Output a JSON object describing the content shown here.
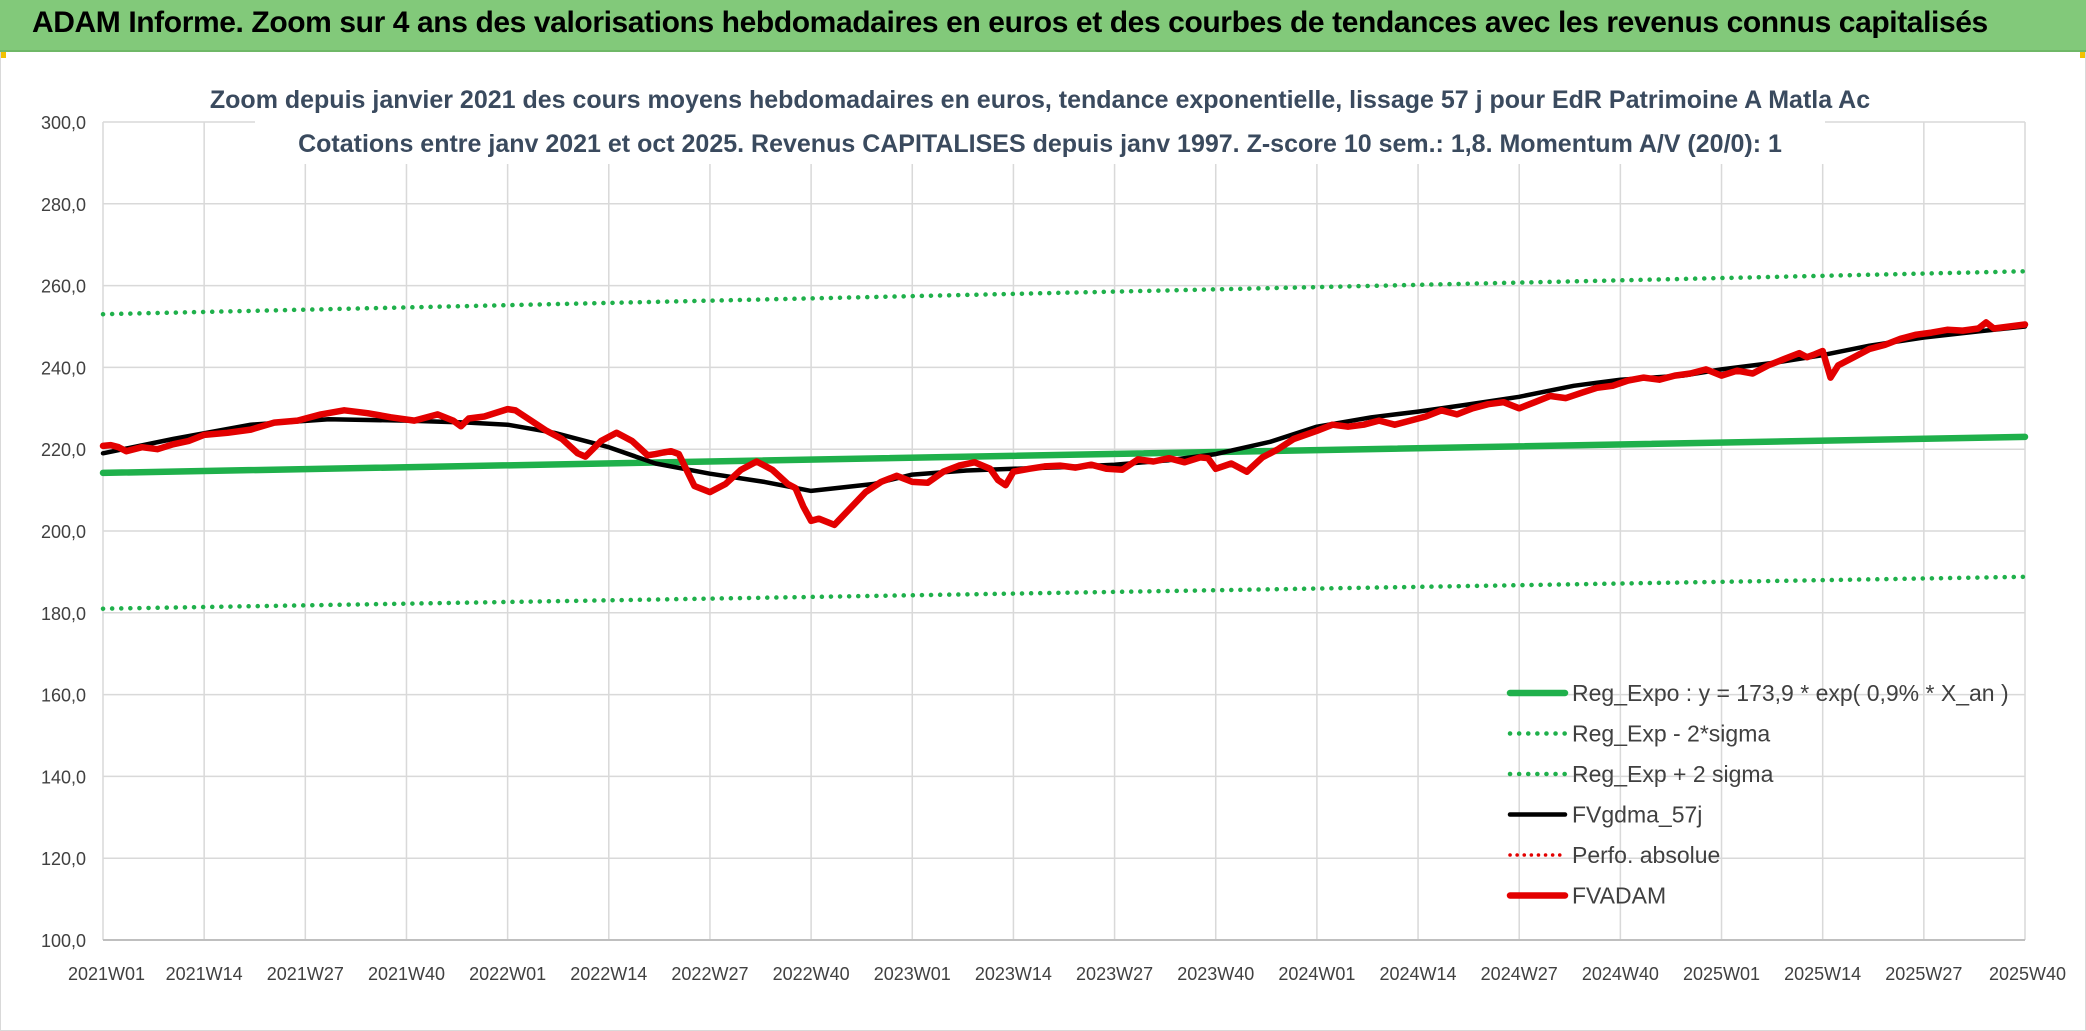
{
  "header": {
    "title": "ADAM Informe. Zoom sur 4 ans des valorisations hebdomadaires en euros et des courbes de tendances avec les revenus connus capitalisés"
  },
  "chart_data": {
    "type": "line",
    "title_line1": "Zoom depuis janvier 2021 des cours moyens hebdomadaires en euros, tendance exponentielle, lissage 57 j pour EdR Patrimoine A Matla Ac",
    "title_line2": "Cotations entre janv 2021 et oct 2025. Revenus CAPITALISES depuis janv 1997. Z-score 10 sem.: 1,8. Momentum A/V (20/0): 1",
    "ylim": [
      100,
      300
    ],
    "y_ticks": [
      "100,0",
      "120,0",
      "140,0",
      "160,0",
      "180,0",
      "200,0",
      "220,0",
      "240,0",
      "260,0",
      "280,0",
      "300,0"
    ],
    "y_tick_values": [
      100,
      120,
      140,
      160,
      180,
      200,
      220,
      240,
      260,
      280,
      300
    ],
    "x_ticks": [
      "2021W01",
      "2021W14",
      "2021W27",
      "2021W40",
      "2022W01",
      "2022W14",
      "2022W27",
      "2022W40",
      "2023W01",
      "2023W14",
      "2023W27",
      "2023W40",
      "2024W01",
      "2024W14",
      "2024W27",
      "2024W40",
      "2025W01",
      "2025W14",
      "2025W27",
      "2025W40"
    ],
    "grid": true,
    "legend_position": "bottom-right",
    "colors": {
      "green": "#1fb04b",
      "black": "#000000",
      "red": "#e30000",
      "grid": "#d9d9d9"
    },
    "series": [
      {
        "name": "Reg_Expo : y = 173,9 * exp( 0,9% *  X_an )",
        "style": "solid-green",
        "x": [
          "2021W01",
          "2025W40"
        ],
        "values": [
          214.2,
          223.0
        ]
      },
      {
        "name": "Reg_Exp - 2*sigma",
        "style": "dotted-green",
        "x": [
          "2021W01",
          "2025W40"
        ],
        "values": [
          181.0,
          188.8
        ]
      },
      {
        "name": "Reg_Exp + 2 sigma",
        "style": "dotted-green",
        "x": [
          "2021W01",
          "2025W40"
        ],
        "values": [
          253.0,
          263.5
        ]
      },
      {
        "name": "FVgdma_57j",
        "style": "solid-black",
        "x": [
          "2021W01",
          "2021W10",
          "2021W20",
          "2021W30",
          "2021W40",
          "2021W48",
          "2022W01",
          "2022W07",
          "2022W14",
          "2022W20",
          "2022W27",
          "2022W34",
          "2022W40",
          "2022W48",
          "2023W01",
          "2023W08",
          "2023W14",
          "2023W20",
          "2023W27",
          "2023W34",
          "2023W40",
          "2023W47",
          "2024W01",
          "2024W08",
          "2024W14",
          "2024W20",
          "2024W27",
          "2024W34",
          "2024W40",
          "2024W48",
          "2025W01",
          "2025W08",
          "2025W14",
          "2025W20",
          "2025W27",
          "2025W34",
          "2025W40"
        ],
        "values": [
          219.0,
          222.5,
          226.0,
          227.3,
          227.0,
          226.5,
          226.0,
          224.0,
          220.5,
          216.5,
          214.0,
          212.0,
          209.8,
          211.5,
          213.8,
          214.8,
          215.2,
          215.6,
          216.2,
          217.3,
          218.8,
          221.8,
          225.5,
          227.8,
          229.2,
          230.8,
          232.8,
          235.5,
          237.0,
          238.0,
          239.5,
          241.2,
          243.0,
          245.3,
          247.3,
          248.8,
          250.0
        ]
      },
      {
        "name": "Perfo. absolue",
        "style": "dotted-red",
        "x": [],
        "values": []
      },
      {
        "name": "FVADAM",
        "style": "solid-red",
        "x": [
          "2021W01",
          "2021W02",
          "2021W03",
          "2021W04",
          "2021W06",
          "2021W08",
          "2021W10",
          "2021W12",
          "2021W14",
          "2021W17",
          "2021W20",
          "2021W23",
          "2021W26",
          "2021W29",
          "2021W32",
          "2021W35",
          "2021W38",
          "2021W41",
          "2021W44",
          "2021W46",
          "2021W47",
          "2021W48",
          "2021W50",
          "2022W01",
          "2022W02",
          "2022W04",
          "2022W06",
          "2022W08",
          "2022W10",
          "2022W11",
          "2022W13",
          "2022W15",
          "2022W17",
          "2022W19",
          "2022W20",
          "2022W21",
          "2022W22",
          "2022W23",
          "2022W25",
          "2022W27",
          "2022W29",
          "2022W31",
          "2022W33",
          "2022W35",
          "2022W37",
          "2022W38",
          "2022W39",
          "2022W40",
          "2022W41",
          "2022W43",
          "2022W45",
          "2022W47",
          "2022W49",
          "2022W51",
          "2023W01",
          "2023W03",
          "2023W05",
          "2023W07",
          "2023W09",
          "2023W11",
          "2023W12",
          "2023W13",
          "2023W14",
          "2023W16",
          "2023W18",
          "2023W20",
          "2023W22",
          "2023W24",
          "2023W26",
          "2023W28",
          "2023W30",
          "2023W32",
          "2023W34",
          "2023W36",
          "2023W38",
          "2023W39",
          "2023W40",
          "2023W42",
          "2023W44",
          "2023W46",
          "2023W48",
          "2023W50",
          "2024W01",
          "2024W03",
          "2024W05",
          "2024W07",
          "2024W09",
          "2024W11",
          "2024W13",
          "2024W15",
          "2024W17",
          "2024W19",
          "2024W21",
          "2024W23",
          "2024W25",
          "2024W27",
          "2024W29",
          "2024W31",
          "2024W33",
          "2024W35",
          "2024W37",
          "2024W39",
          "2024W41",
          "2024W43",
          "2024W45",
          "2024W47",
          "2024W49",
          "2024W51",
          "2025W01",
          "2025W03",
          "2025W05",
          "2025W07",
          "2025W09",
          "2025W11",
          "2025W12",
          "2025W13",
          "2025W14",
          "2025W15",
          "2025W16",
          "2025W18",
          "2025W20",
          "2025W22",
          "2025W24",
          "2025W26",
          "2025W28",
          "2025W30",
          "2025W32",
          "2025W34",
          "2025W35",
          "2025W36",
          "2025W38",
          "2025W40"
        ],
        "values": [
          220.8,
          221.0,
          220.5,
          219.5,
          220.5,
          220.0,
          221.2,
          222.0,
          223.5,
          224.0,
          224.8,
          226.5,
          227.0,
          228.5,
          229.5,
          228.8,
          227.8,
          227.0,
          228.5,
          227.0,
          225.6,
          227.5,
          228.0,
          229.8,
          229.5,
          227.0,
          224.5,
          222.5,
          219.0,
          218.2,
          222.0,
          224.0,
          222.0,
          218.5,
          218.8,
          219.2,
          219.5,
          218.8,
          211.0,
          209.5,
          211.5,
          215.0,
          217.0,
          215.0,
          211.5,
          210.5,
          206.0,
          202.5,
          203.0,
          201.5,
          205.5,
          209.5,
          212.0,
          213.5,
          212.0,
          211.8,
          214.5,
          216.0,
          216.8,
          215.2,
          212.5,
          211.2,
          214.5,
          215.2,
          215.8,
          216.0,
          215.5,
          216.2,
          215.2,
          215.0,
          217.5,
          217.0,
          217.8,
          216.8,
          218.0,
          217.8,
          215.2,
          216.5,
          214.5,
          218.0,
          220.0,
          222.5,
          224.5,
          226.0,
          225.5,
          226.0,
          227.0,
          226.0,
          227.0,
          228.0,
          229.5,
          228.5,
          230.0,
          231.0,
          231.5,
          230.0,
          231.5,
          233.0,
          232.5,
          233.8,
          235.0,
          235.5,
          236.8,
          237.5,
          237.0,
          238.0,
          238.5,
          239.5,
          238.0,
          239.2,
          238.5,
          240.5,
          242.0,
          243.5,
          242.5,
          243.2,
          244.0,
          237.5,
          240.5,
          242.5,
          244.5,
          245.5,
          247.0,
          248.0,
          248.5,
          249.2,
          249.0,
          249.5,
          251.0,
          249.5,
          250.0,
          250.5
        ]
      }
    ]
  }
}
